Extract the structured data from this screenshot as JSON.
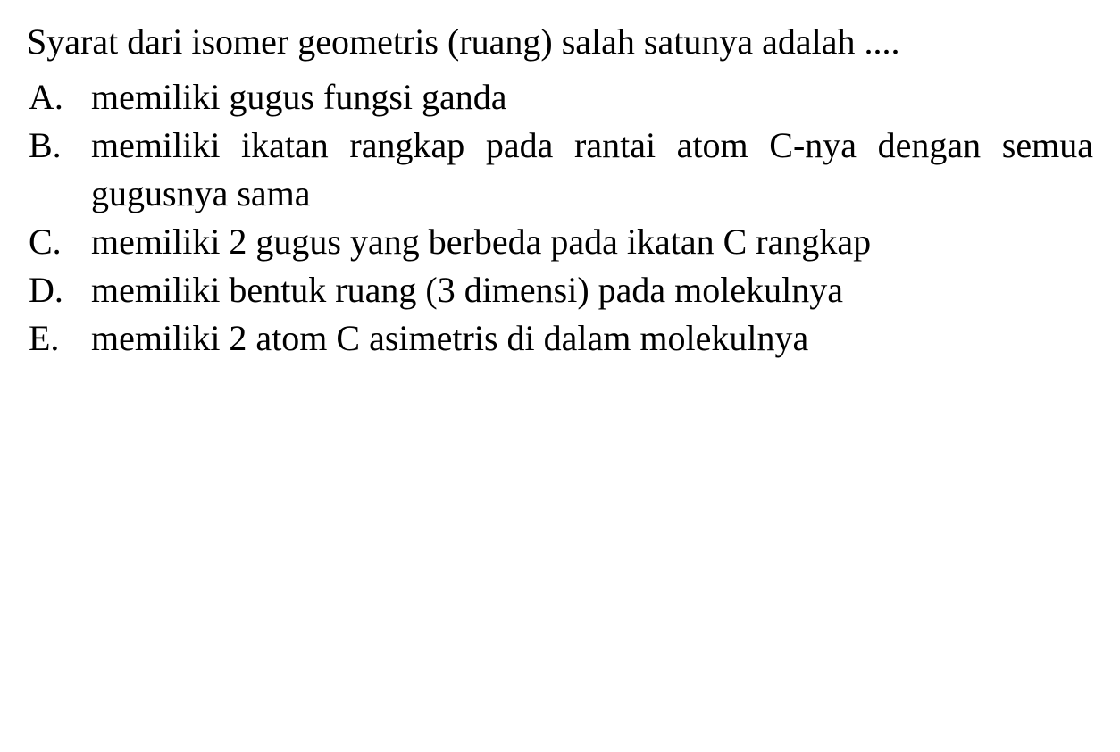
{
  "question": {
    "text": "Syarat dari isomer geometris (ruang) salah satunya adalah ....",
    "fontsize": 40,
    "color": "#000000",
    "font_family": "Georgia, serif"
  },
  "options": [
    {
      "label": "A.",
      "text": "memiliki gugus fungsi ganda"
    },
    {
      "label": "B.",
      "text": "memiliki ikatan rangkap pada rantai atom C-nya dengan semua gugusnya sama"
    },
    {
      "label": "C.",
      "text": "memiliki 2 gugus yang berbeda pada ikatan C rangkap"
    },
    {
      "label": "D.",
      "text": "memiliki bentuk ruang (3 dimensi) pada molekulnya"
    },
    {
      "label": "E.",
      "text": "memiliki 2 atom C asimetris di dalam molekulnya"
    }
  ],
  "styling": {
    "background_color": "#ffffff",
    "text_color": "#000000",
    "option_fontsize": 40,
    "option_label_width": 72,
    "line_height": 1.35,
    "text_align": "justify"
  }
}
